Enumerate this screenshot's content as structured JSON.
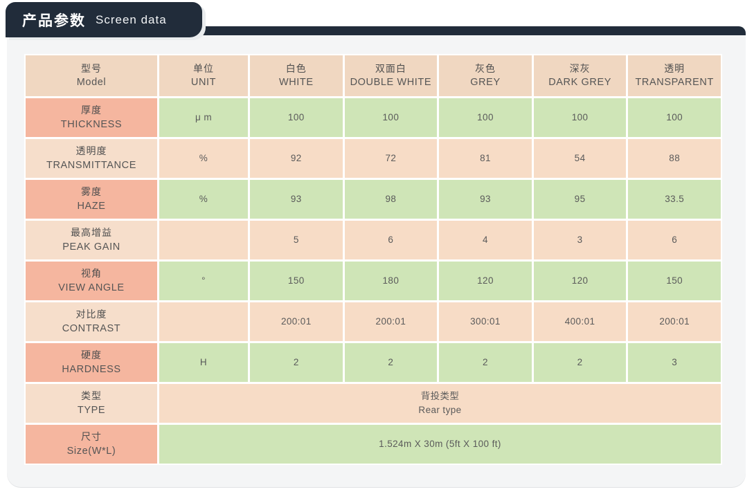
{
  "header": {
    "title_zh": "产品参数",
    "title_en": "Screen data"
  },
  "colors": {
    "navy": "#212c3a",
    "card_bg": "#f4f5f6",
    "header_cell": "#f0d7c1",
    "salmon_cell": "#f5b69f",
    "green_cell": "#cfe5b7",
    "peach_cell": "#f7dcc6",
    "text": "#555555"
  },
  "table": {
    "columns": [
      {
        "zh": "型号",
        "en": "Model"
      },
      {
        "zh": "单位",
        "en": "UNIT"
      },
      {
        "zh": "白色",
        "en": "WHITE"
      },
      {
        "zh": "双面白",
        "en": "DOUBLE WHITE"
      },
      {
        "zh": "灰色",
        "en": "GREY"
      },
      {
        "zh": "深灰",
        "en": "DARK GREY"
      },
      {
        "zh": "透明",
        "en": "TRANSPARENT"
      }
    ],
    "rows": [
      {
        "zh": "厚度",
        "en": "THICKNESS",
        "unit": "μ m",
        "values": [
          "100",
          "100",
          "100",
          "100",
          "100"
        ],
        "tone": "green"
      },
      {
        "zh": "透明度",
        "en": "TRANSMITTANCE",
        "unit": "%",
        "values": [
          "92",
          "72",
          "81",
          "54",
          "88"
        ],
        "tone": "peach"
      },
      {
        "zh": "雾度",
        "en": "HAZE",
        "unit": "%",
        "values": [
          "93",
          "98",
          "93",
          "95",
          "33.5"
        ],
        "tone": "green"
      },
      {
        "zh": "最高增益",
        "en": "PEAK GAIN",
        "unit": "",
        "values": [
          "5",
          "6",
          "4",
          "3",
          "6"
        ],
        "tone": "peach"
      },
      {
        "zh": "视角",
        "en": "VIEW ANGLE",
        "unit": "°",
        "values": [
          "150",
          "180",
          "120",
          "120",
          "150"
        ],
        "tone": "green"
      },
      {
        "zh": "对比度",
        "en": "CONTRAST",
        "unit": "",
        "values": [
          "200:01",
          "200:01",
          "300:01",
          "400:01",
          "200:01"
        ],
        "tone": "peach"
      },
      {
        "zh": "硬度",
        "en": "HARDNESS",
        "unit": "H",
        "values": [
          "2",
          "2",
          "2",
          "2",
          "3"
        ],
        "tone": "green"
      }
    ],
    "span_rows": [
      {
        "zh": "类型",
        "en": "TYPE",
        "value_lines": [
          "背投类型",
          "Rear type"
        ],
        "tone": "peach"
      },
      {
        "zh": "尺寸",
        "en": "Size(W*L)",
        "value_lines": [
          "1.524m X 30m (5ft X 100 ft)"
        ],
        "tone": "green"
      }
    ]
  }
}
